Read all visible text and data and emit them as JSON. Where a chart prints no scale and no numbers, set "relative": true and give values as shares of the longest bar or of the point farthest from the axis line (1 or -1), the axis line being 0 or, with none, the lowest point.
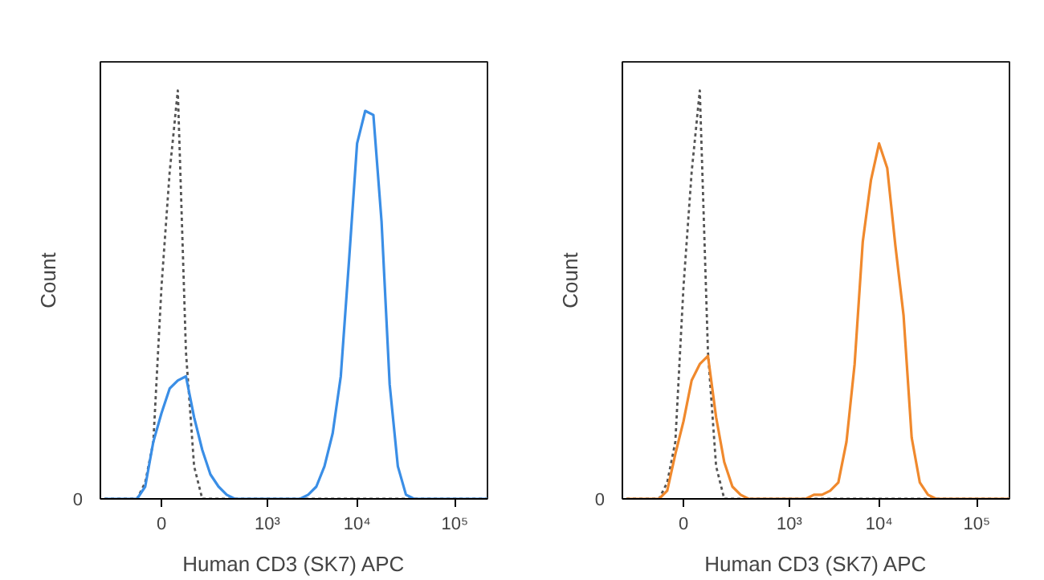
{
  "chart_data": [
    {
      "type": "line",
      "relative": true,
      "xlabel": "Human CD3 (SK7) APC",
      "ylabel": "Count",
      "categories": [
        null,
        null,
        null,
        null,
        null,
        null,
        null,
        "0",
        null,
        null,
        null,
        null,
        null,
        null,
        null,
        null,
        null,
        null,
        null,
        null,
        "10³",
        null,
        null,
        null,
        null,
        null,
        null,
        null,
        null,
        null,
        null,
        "10⁴",
        null,
        null,
        null,
        null,
        null,
        null,
        null,
        null,
        null,
        null,
        null,
        "10⁵",
        null,
        null,
        null,
        null
      ],
      "annotations": [
        "0"
      ],
      "grid": false,
      "marker": "none",
      "series": [
        {
          "color": "#555555",
          "line_style": "dotted",
          "values": [
            0,
            0,
            0,
            0,
            0,
            0.04,
            0.14,
            0.52,
            0.8,
            1.0,
            0.36,
            0.08,
            0,
            0,
            0,
            0,
            0,
            0,
            0,
            0,
            0,
            0,
            0,
            0,
            0,
            0,
            0,
            0,
            0,
            0,
            0,
            0,
            0,
            0,
            0,
            0,
            0,
            0,
            0,
            0,
            0,
            0,
            0,
            0,
            0,
            0,
            0,
            0
          ]
        },
        {
          "color": "#3a8ee6",
          "line_style": "solid",
          "values": [
            0,
            0,
            0,
            0,
            0,
            0.03,
            0.14,
            0.21,
            0.27,
            0.29,
            0.3,
            0.2,
            0.12,
            0.06,
            0.03,
            0.01,
            0,
            0,
            0,
            0,
            0,
            0,
            0,
            0,
            0,
            0.01,
            0.03,
            0.08,
            0.16,
            0.3,
            0.58,
            0.87,
            0.95,
            0.94,
            0.68,
            0.28,
            0.08,
            0.01,
            0,
            0,
            0,
            0,
            0,
            0,
            0,
            0,
            0,
            0
          ]
        }
      ]
    },
    {
      "type": "line",
      "relative": true,
      "xlabel": "Human CD3 (SK7) APC",
      "ylabel": "Count",
      "categories": [
        null,
        null,
        null,
        null,
        null,
        null,
        null,
        "0",
        null,
        null,
        null,
        null,
        null,
        null,
        null,
        null,
        null,
        null,
        null,
        null,
        "10³",
        null,
        null,
        null,
        null,
        null,
        null,
        null,
        null,
        null,
        null,
        "10⁴",
        null,
        null,
        null,
        null,
        null,
        null,
        null,
        null,
        null,
        null,
        null,
        "10⁵",
        null,
        null,
        null,
        null
      ],
      "annotations": [
        "0"
      ],
      "grid": false,
      "marker": "none",
      "series": [
        {
          "color": "#555555",
          "line_style": "dotted",
          "values": [
            0,
            0,
            0,
            0,
            0,
            0.04,
            0.14,
            0.52,
            0.8,
            1.0,
            0.36,
            0.08,
            0,
            0,
            0,
            0,
            0,
            0,
            0,
            0,
            0,
            0,
            0,
            0,
            0,
            0,
            0,
            0,
            0,
            0,
            0,
            0,
            0,
            0,
            0,
            0,
            0,
            0,
            0,
            0,
            0,
            0,
            0,
            0,
            0,
            0,
            0,
            0
          ]
        },
        {
          "color": "#f0892d",
          "line_style": "solid",
          "values": [
            0,
            0,
            0,
            0,
            0,
            0.02,
            0.11,
            0.19,
            0.29,
            0.33,
            0.35,
            0.2,
            0.09,
            0.03,
            0.01,
            0,
            0,
            0,
            0,
            0,
            0,
            0,
            0,
            0.01,
            0.01,
            0.02,
            0.04,
            0.14,
            0.33,
            0.63,
            0.78,
            0.87,
            0.81,
            0.62,
            0.45,
            0.15,
            0.04,
            0.01,
            0,
            0,
            0,
            0,
            0,
            0,
            0,
            0,
            0,
            0
          ]
        }
      ]
    }
  ]
}
